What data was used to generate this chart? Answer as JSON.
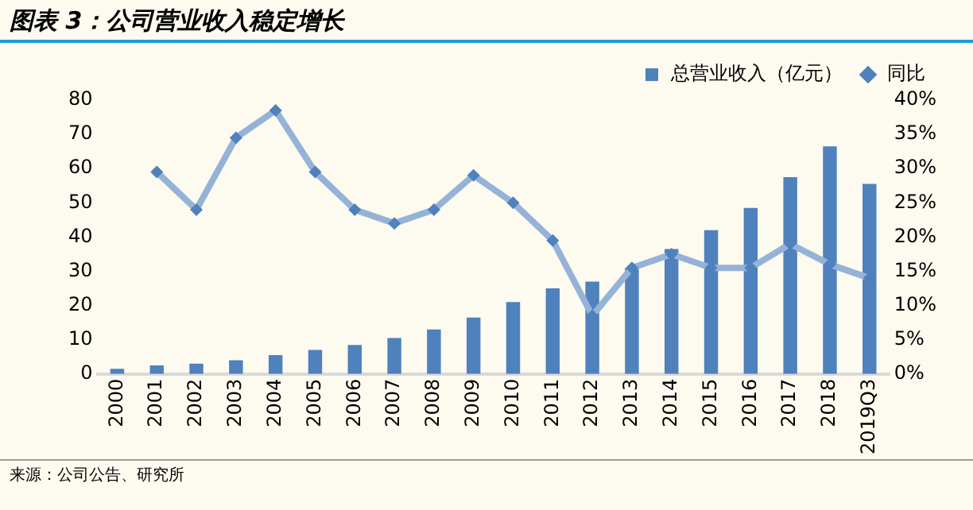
{
  "chart_data": {
    "type": "bar",
    "title": "图表 3：公司营业收入稳定增长",
    "categories": [
      "2000",
      "2001",
      "2002",
      "2003",
      "2004",
      "2005",
      "2006",
      "2007",
      "2008",
      "2009",
      "2010",
      "2011",
      "2012",
      "2013",
      "2014",
      "2015",
      "2016",
      "2017",
      "2018",
      "2019Q3"
    ],
    "series": [
      {
        "name": "总营业收入（亿元）",
        "color": "#4f81bd",
        "values": [
          1.5,
          2.5,
          3,
          4,
          5.5,
          7,
          8.5,
          10.5,
          13,
          16.5,
          21,
          25,
          27,
          31,
          36.5,
          42,
          48.5,
          57.5,
          66.5,
          55.5
        ]
      },
      {
        "name": "同比",
        "type": "line",
        "axis": "y2",
        "color": "#95b3d7",
        "marker": "diamond",
        "values": [
          null,
          29.5,
          24,
          34.5,
          38.5,
          29.5,
          24,
          22,
          24,
          29,
          25,
          19.5,
          8.5,
          15.5,
          17.5,
          15.5,
          15.5,
          19,
          16,
          14
        ]
      }
    ],
    "ylim": [
      0,
      80
    ],
    "yticks": [
      0,
      10,
      20,
      30,
      40,
      50,
      60,
      70,
      80
    ],
    "y2lim": [
      0,
      40
    ],
    "y2ticks": [
      {
        "value": 0,
        "label": "0%"
      },
      {
        "value": 5,
        "label": "5%"
      },
      {
        "value": 10,
        "label": "10%"
      },
      {
        "value": 15,
        "label": "15%"
      },
      {
        "value": 20,
        "label": "20%"
      },
      {
        "value": 25,
        "label": "25%"
      },
      {
        "value": 30,
        "label": "30%"
      },
      {
        "value": 35,
        "label": "35%"
      },
      {
        "value": 40,
        "label": "40%"
      }
    ],
    "grid": false,
    "legend": "top right",
    "annotations": [
      "来源：公司公告、研究所"
    ]
  }
}
